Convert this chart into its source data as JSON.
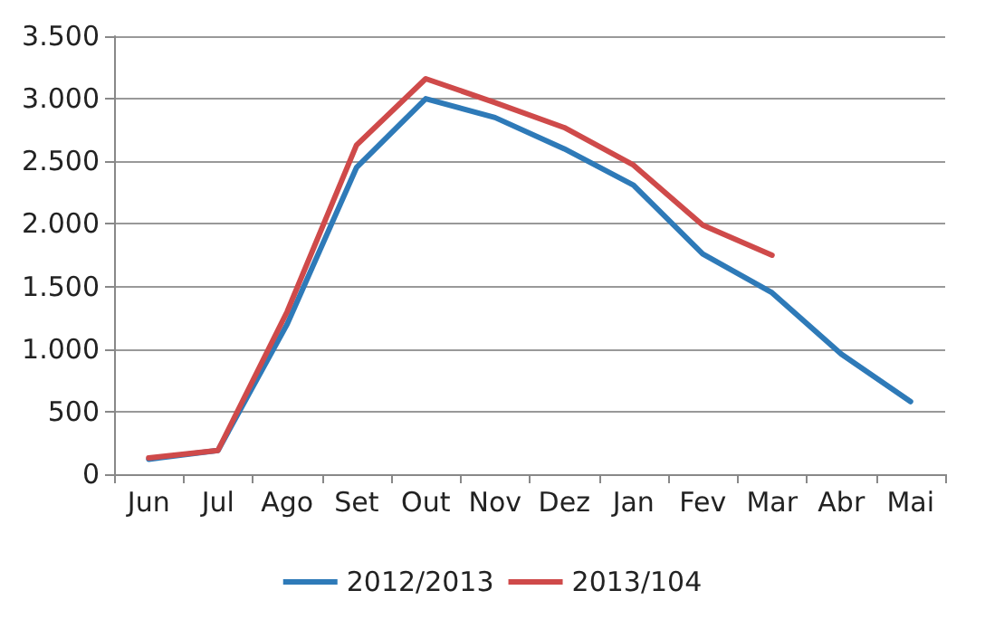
{
  "chart_data": {
    "type": "line",
    "categories": [
      "Jun",
      "Jul",
      "Ago",
      "Set",
      "Out",
      "Nov",
      "Dez",
      "Jan",
      "Fev",
      "Mar",
      "Abr",
      "Mai"
    ],
    "series": [
      {
        "name": "2012/2013",
        "color": "#2e7ab8",
        "values": [
          120,
          190,
          1200,
          2450,
          3000,
          2850,
          2600,
          2310,
          1760,
          1450,
          960,
          580
        ]
      },
      {
        "name": "2013/104",
        "color": "#cf4a4a",
        "values": [
          130,
          190,
          1300,
          2630,
          3160,
          2970,
          2770,
          2470,
          1990,
          1750,
          null,
          null
        ]
      }
    ],
    "ylim": [
      0,
      3500
    ],
    "yticks": [
      0,
      500,
      {
        "value": 1000,
        "label": "1.000"
      },
      {
        "value": 1500,
        "label": "1.500"
      },
      {
        "value": 2000,
        "label": "2.000"
      },
      {
        "value": 2500,
        "label": "2.500"
      },
      {
        "value": 3000,
        "label": "3.000"
      },
      {
        "value": 3500,
        "label": "3.500"
      }
    ],
    "grid": "y",
    "legend": "bottom",
    "marker": "none",
    "line_style": "solid"
  }
}
